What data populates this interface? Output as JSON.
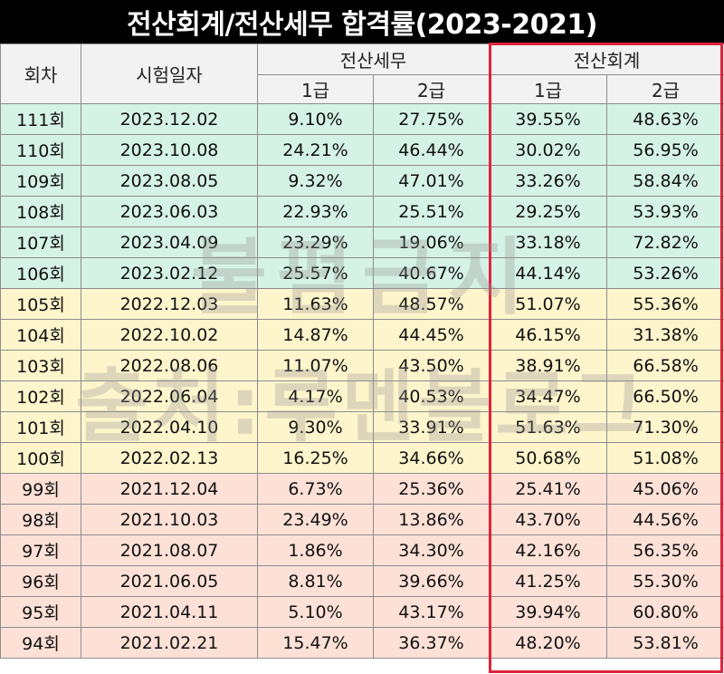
{
  "title": "전산회계/전산세무 합격률(2023-2021)",
  "header": {
    "round": "회차",
    "date": "시험일자",
    "tax": "전산세무",
    "accounting": "전산회계",
    "grade1": "1급",
    "grade2": "2급"
  },
  "colors": {
    "band_2023": "#d5f2e6",
    "band_2022": "#fff5cc",
    "band_2021": "#fde1d6",
    "highlight_border": "#e1223b"
  },
  "watermark": {
    "line1": "불펌금지",
    "line2": "출처:루멘블로그"
  },
  "rows": [
    {
      "round": "111회",
      "date": "2023.12.02",
      "tax1": "9.10%",
      "tax2": "27.75%",
      "acc1": "39.55%",
      "acc2": "48.63%"
    },
    {
      "round": "110회",
      "date": "2023.10.08",
      "tax1": "24.21%",
      "tax2": "46.44%",
      "acc1": "30.02%",
      "acc2": "56.95%"
    },
    {
      "round": "109회",
      "date": "2023.08.05",
      "tax1": "9.32%",
      "tax2": "47.01%",
      "acc1": "33.26%",
      "acc2": "58.84%"
    },
    {
      "round": "108회",
      "date": "2023.06.03",
      "tax1": "22.93%",
      "tax2": "25.51%",
      "acc1": "29.25%",
      "acc2": "53.93%"
    },
    {
      "round": "107회",
      "date": "2023.04.09",
      "tax1": "23.29%",
      "tax2": "19.06%",
      "acc1": "33.18%",
      "acc2": "72.82%"
    },
    {
      "round": "106회",
      "date": "2023.02.12",
      "tax1": "25.57%",
      "tax2": "40.67%",
      "acc1": "44.14%",
      "acc2": "53.26%"
    },
    {
      "round": "105회",
      "date": "2022.12.03",
      "tax1": "11.63%",
      "tax2": "48.57%",
      "acc1": "51.07%",
      "acc2": "55.36%"
    },
    {
      "round": "104회",
      "date": "2022.10.02",
      "tax1": "14.87%",
      "tax2": "44.45%",
      "acc1": "46.15%",
      "acc2": "31.38%"
    },
    {
      "round": "103회",
      "date": "2022.08.06",
      "tax1": "11.07%",
      "tax2": "43.50%",
      "acc1": "38.91%",
      "acc2": "66.58%"
    },
    {
      "round": "102회",
      "date": "2022.06.04",
      "tax1": "4.17%",
      "tax2": "40.53%",
      "acc1": "34.47%",
      "acc2": "66.50%"
    },
    {
      "round": "101회",
      "date": "2022.04.10",
      "tax1": "9.30%",
      "tax2": "33.91%",
      "acc1": "51.63%",
      "acc2": "71.30%"
    },
    {
      "round": "100회",
      "date": "2022.02.13",
      "tax1": "16.25%",
      "tax2": "34.66%",
      "acc1": "50.68%",
      "acc2": "51.08%"
    },
    {
      "round": "99회",
      "date": "2021.12.04",
      "tax1": "6.73%",
      "tax2": "25.36%",
      "acc1": "25.41%",
      "acc2": "45.06%"
    },
    {
      "round": "98회",
      "date": "2021.10.03",
      "tax1": "23.49%",
      "tax2": "13.86%",
      "acc1": "43.70%",
      "acc2": "44.56%"
    },
    {
      "round": "97회",
      "date": "2021.08.07",
      "tax1": "1.86%",
      "tax2": "34.30%",
      "acc1": "42.16%",
      "acc2": "56.35%"
    },
    {
      "round": "96회",
      "date": "2021.06.05",
      "tax1": "8.81%",
      "tax2": "39.66%",
      "acc1": "41.25%",
      "acc2": "55.30%"
    },
    {
      "round": "95회",
      "date": "2021.04.11",
      "tax1": "5.10%",
      "tax2": "43.17%",
      "acc1": "39.94%",
      "acc2": "60.80%"
    },
    {
      "round": "94회",
      "date": "2021.02.21",
      "tax1": "15.47%",
      "tax2": "36.37%",
      "acc1": "48.20%",
      "acc2": "53.81%"
    }
  ]
}
